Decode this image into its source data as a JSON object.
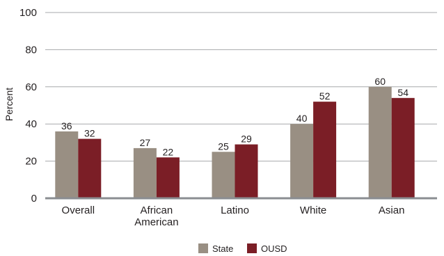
{
  "chart_data": {
    "type": "bar",
    "categories": [
      [
        "Overall"
      ],
      [
        "African",
        "American"
      ],
      [
        "Latino"
      ],
      [
        "White"
      ],
      [
        "Asian"
      ]
    ],
    "series": [
      {
        "name": "State",
        "color": "#998f83",
        "values": [
          36,
          27,
          25,
          40,
          60
        ]
      },
      {
        "name": "OUSD",
        "color": "#7b1e26",
        "values": [
          32,
          22,
          29,
          52,
          54
        ]
      }
    ],
    "ylabel": "Percent",
    "ylim": [
      0,
      100
    ],
    "yticks": [
      0,
      20,
      40,
      60,
      80,
      100
    ],
    "grid": true,
    "legend": "bottom-center"
  }
}
